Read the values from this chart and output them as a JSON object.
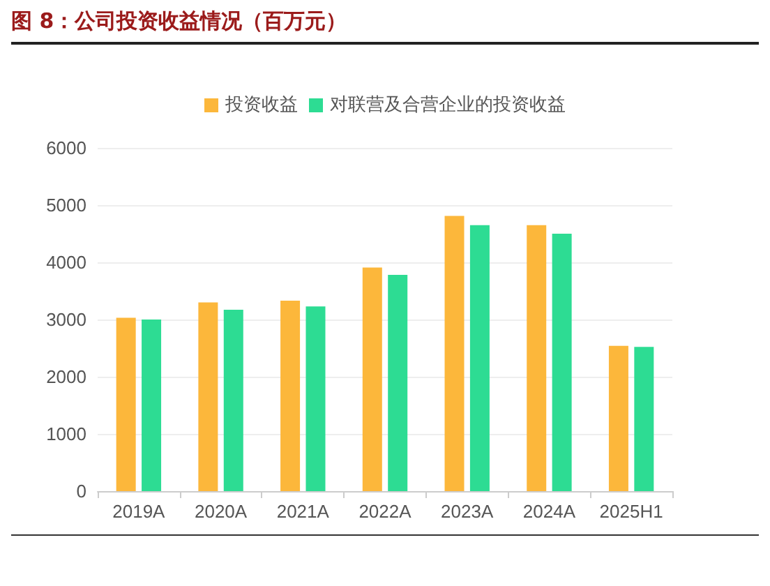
{
  "chart_data": {
    "type": "bar",
    "title": "图 8：公司投资收益情况（百万元）",
    "categories": [
      "2019A",
      "2020A",
      "2021A",
      "2022A",
      "2023A",
      "2024A",
      "2025H1"
    ],
    "series": [
      {
        "name": "投资收益",
        "color": "#fcb73b",
        "values": [
          3030,
          3300,
          3330,
          3910,
          4810,
          4650,
          2540
        ]
      },
      {
        "name": "对联营及合营企业的投资收益",
        "color": "#2ddc93",
        "values": [
          3000,
          3170,
          3230,
          3780,
          4650,
          4500,
          2520
        ]
      }
    ],
    "ylim": [
      0,
      6000
    ],
    "yticks": [
      0,
      1000,
      2000,
      3000,
      4000,
      5000,
      6000
    ],
    "grid": "y",
    "legend": "top"
  }
}
